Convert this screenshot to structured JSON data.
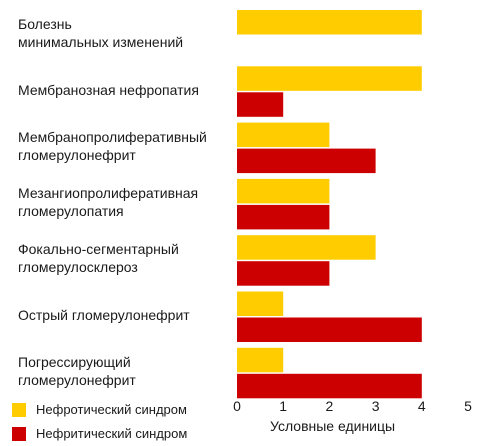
{
  "chart_data": {
    "type": "bar",
    "orientation": "horizontal",
    "categories": [
      "Болезнь\nминимальных изменений",
      "Мембранозная нефропатия",
      "Мембранопролиферативный\nгломерулонефрит",
      "Мезангиопролиферативная\nгломерулопатия",
      "Фокально-сегментарный\nгломерулосклероз",
      "Острый гломерулонефрит",
      "Погрессирующий\nгломерулонефрит"
    ],
    "series": [
      {
        "name": "Нефротический синдром",
        "color": "#FFCC00",
        "values": [
          4,
          4,
          2,
          2,
          3,
          1,
          1
        ]
      },
      {
        "name": "Нефритический синдром",
        "color": "#CC0000",
        "values": [
          null,
          1,
          3,
          2,
          2,
          4,
          4
        ]
      }
    ],
    "xlabel": "Условные единицы",
    "xlim": [
      0,
      5
    ],
    "xticks": [
      "0",
      "1",
      "2",
      "3",
      "4",
      "5"
    ],
    "grid": false,
    "legend_position": "bottom-left"
  }
}
